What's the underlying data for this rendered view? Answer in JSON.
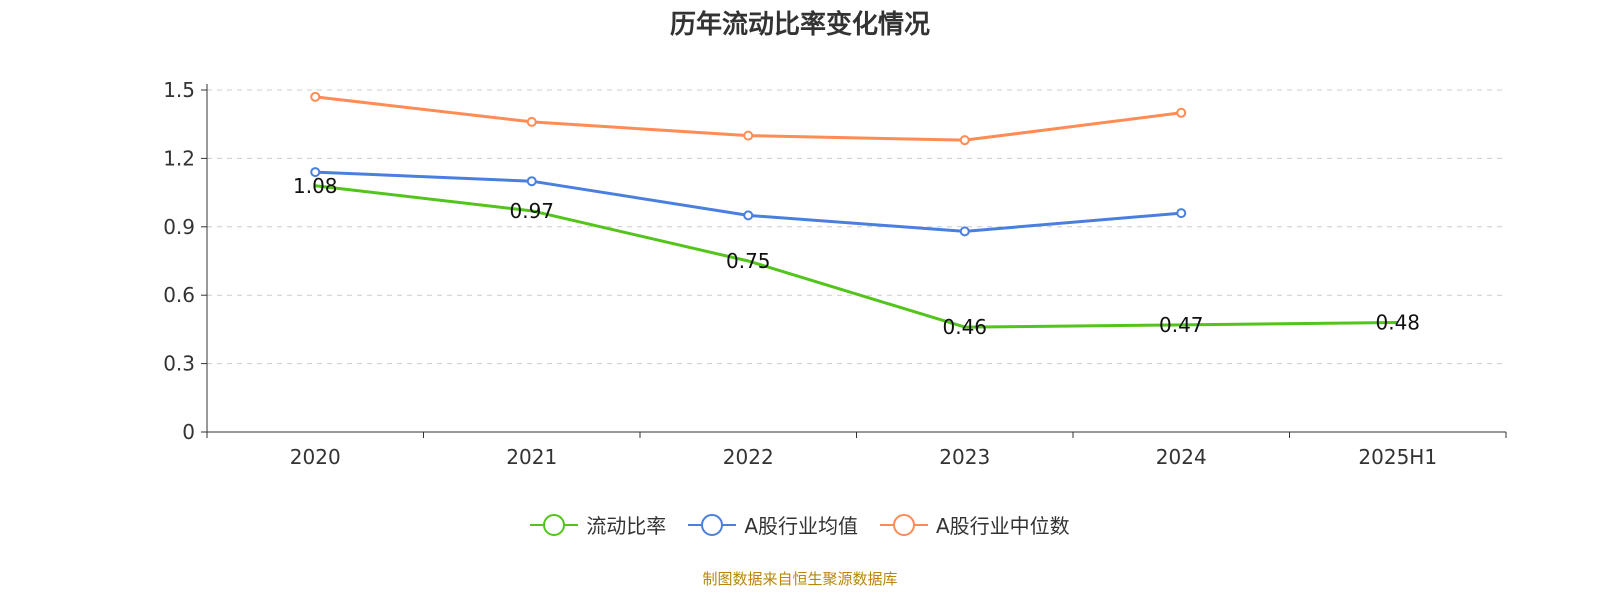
{
  "chart_data": {
    "type": "line",
    "title": "历年流动比率变化情况",
    "categories": [
      "2020",
      "2021",
      "2022",
      "2023",
      "2024",
      "2025H1"
    ],
    "ylim": [
      0,
      1.5
    ],
    "yticks": [
      "0",
      "0.3",
      "0.6",
      "0.9",
      "1.2",
      "1.5"
    ],
    "grid": true,
    "legend_position": "bottom",
    "series": [
      {
        "name": "流动比率",
        "color": "#52c41a",
        "values": [
          1.08,
          0.97,
          0.75,
          0.46,
          0.47,
          0.48
        ],
        "labels": [
          "1.08",
          "0.97",
          "0.75",
          "0.46",
          "0.47",
          "0.48"
        ],
        "show_labels": true,
        "show_markers": false
      },
      {
        "name": "A股行业均值",
        "color": "#4a7fe0",
        "values": [
          1.14,
          1.1,
          0.95,
          0.88,
          0.96,
          null
        ],
        "show_labels": false,
        "show_markers": true
      },
      {
        "name": "A股行业中位数",
        "color": "#ff8c55",
        "values": [
          1.47,
          1.36,
          1.3,
          1.28,
          1.4,
          null
        ],
        "show_labels": false,
        "show_markers": true
      }
    ]
  },
  "source": "制图数据来自恒生聚源数据库"
}
